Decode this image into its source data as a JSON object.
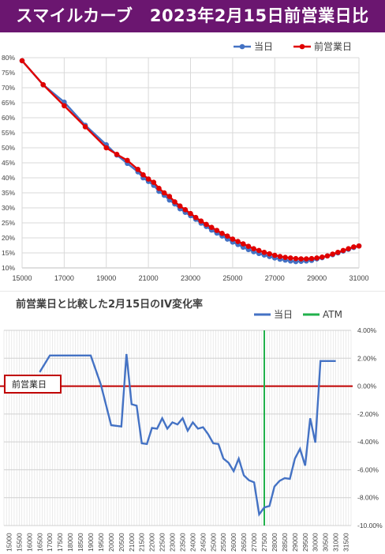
{
  "banner": {
    "title": "スマイルカーブ　2023年2月15日前営業日比"
  },
  "colors": {
    "banner_bg": "#6b1670",
    "today": "#4472c4",
    "prev": "#e00000",
    "atm": "#22b14c",
    "zero_line": "#c00000",
    "box": "#c00000"
  },
  "chart_data": [
    {
      "type": "line",
      "title": "",
      "x_ticks": [
        "15000",
        "17000",
        "19000",
        "21000",
        "23000",
        "25000",
        "27000",
        "29000",
        "31000"
      ],
      "y_ticks": [
        "10%",
        "15%",
        "20%",
        "25%",
        "30%",
        "35%",
        "40%",
        "45%",
        "50%",
        "55%",
        "60%",
        "65%",
        "70%",
        "75%",
        "80%"
      ],
      "xlim": [
        15000,
        31000
      ],
      "ylim": [
        10,
        80
      ],
      "grid": true,
      "legend_position": "top-right",
      "series": [
        {
          "name": "当日",
          "color": "#4472c4",
          "x": [
            15000,
            16000,
            17000,
            18000,
            19000,
            19500,
            20000,
            20500,
            20750,
            21000,
            21250,
            21500,
            21750,
            22000,
            22250,
            22500,
            22750,
            23000,
            23250,
            23500,
            23750,
            24000,
            24250,
            24500,
            24750,
            25000,
            25250,
            25500,
            25750,
            26000,
            26250,
            26500,
            26750,
            27000,
            27250,
            27500,
            27750,
            28000,
            28250,
            28500,
            28750,
            29000,
            29250,
            29500,
            29750,
            30000,
            30250,
            30500,
            30750,
            31000
          ],
          "values": [
            79,
            71,
            65.2,
            57.5,
            51,
            47.6,
            44.8,
            42,
            40,
            38.8,
            37.5,
            35.5,
            34.2,
            32.6,
            31.3,
            29.7,
            28.5,
            27.4,
            26.2,
            24.9,
            23.8,
            22.6,
            21.6,
            20.6,
            19.6,
            18.6,
            17.8,
            16.9,
            16.1,
            15.4,
            14.8,
            14.3,
            13.8,
            13.3,
            12.9,
            12.6,
            12.3,
            12.1,
            12.2,
            12.3,
            12.5,
            13,
            13.4,
            14,
            14.4,
            15,
            15.6,
            16.2,
            16.8,
            17.3
          ]
        },
        {
          "name": "前営業日",
          "color": "#e00000",
          "x": [
            15000,
            16000,
            17000,
            18000,
            19000,
            19500,
            20000,
            20500,
            20750,
            21000,
            21250,
            21500,
            21750,
            22000,
            22250,
            22500,
            22750,
            23000,
            23250,
            23500,
            23750,
            24000,
            24250,
            24500,
            24750,
            25000,
            25250,
            25500,
            25750,
            26000,
            26250,
            26500,
            26750,
            27000,
            27250,
            27500,
            27750,
            28000,
            28250,
            28500,
            28750,
            29000,
            29250,
            29500,
            29750,
            30000,
            30250,
            30500,
            30750,
            31000
          ],
          "values": [
            79,
            71,
            64,
            57,
            50,
            47.8,
            45.8,
            42.8,
            41,
            39.6,
            38.5,
            36.5,
            35,
            33.8,
            32,
            30.6,
            29.4,
            28.1,
            26.8,
            25.6,
            24.5,
            23.5,
            22.5,
            21.5,
            20.6,
            19.6,
            18.8,
            18,
            17.2,
            16.4,
            15.8,
            15.2,
            14.7,
            14.2,
            13.8,
            13.5,
            13.3,
            13.1,
            13,
            13,
            13.1,
            13.3,
            13.6,
            14,
            14.6,
            15.2,
            15.8,
            16.4,
            17,
            17.3
          ]
        }
      ]
    },
    {
      "type": "line",
      "title": "前営業日と比較した2月15日のIV変化率",
      "box_label": "前営業日",
      "x_ticks": [
        "15000",
        "15500",
        "16000",
        "16500",
        "17000",
        "17500",
        "18000",
        "18500",
        "19000",
        "19500",
        "20000",
        "20500",
        "21000",
        "21500",
        "22000",
        "22500",
        "23000",
        "23500",
        "24000",
        "24500",
        "25000",
        "25500",
        "26000",
        "26500",
        "27000",
        "27500",
        "28000",
        "28500",
        "29000",
        "29500",
        "30000",
        "30500",
        "31000",
        "31500"
      ],
      "y_ticks": [
        "4.00%",
        "2.00%",
        "0.00%",
        "-2.00%",
        "-4.00%",
        "-6.00%",
        "-8.00%",
        "-10.00%"
      ],
      "ylim": [
        -10,
        4
      ],
      "grid": true,
      "legend_position": "top-right",
      "atm_strike": 27500,
      "series": [
        {
          "name": "当日",
          "color": "#4472c4",
          "x": [
            16500,
            17000,
            17500,
            18000,
            18500,
            19000,
            19500,
            20000,
            20500,
            20750,
            21000,
            21250,
            21500,
            21750,
            22000,
            22250,
            22500,
            22750,
            23000,
            23250,
            23500,
            23750,
            24000,
            24250,
            24500,
            24750,
            25000,
            25250,
            25500,
            25750,
            26000,
            26250,
            26500,
            26750,
            27000,
            27250,
            27500,
            27750,
            28000,
            28250,
            28500,
            28750,
            29000,
            29250,
            29500,
            29750,
            30000,
            30250,
            30500,
            30750,
            31000
          ],
          "values": [
            1,
            2.2,
            2.2,
            2.2,
            2.2,
            2.2,
            0.1,
            -2.8,
            -2.9,
            2.3,
            -1.3,
            -1.4,
            -4.1,
            -4.15,
            -3,
            -3.05,
            -2.3,
            -3.05,
            -2.6,
            -2.75,
            -2.3,
            -3.2,
            -2.6,
            -3.05,
            -2.95,
            -3.45,
            -4.1,
            -4.15,
            -5.2,
            -5.5,
            -6.1,
            -5.2,
            -6.4,
            -6.75,
            -6.9,
            -9.2,
            -8.7,
            -8.6,
            -7.2,
            -6.8,
            -6.6,
            -6.65,
            -5.2,
            -4.5,
            -5.7,
            -2.3,
            -4.05,
            1.8,
            1.8,
            1.8,
            1.8
          ]
        },
        {
          "name": "ATM",
          "color": "#22b14c"
        }
      ]
    }
  ]
}
